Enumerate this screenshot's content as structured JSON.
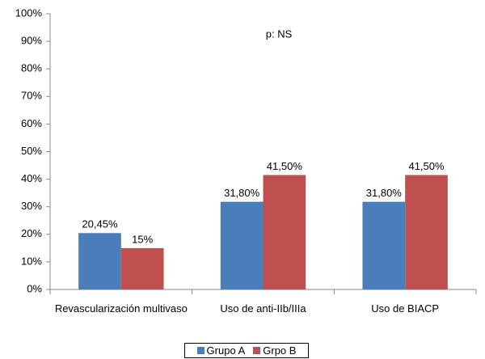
{
  "chart_data": {
    "type": "bar",
    "annotation": "p: NS",
    "categories": [
      "Revascularización multivaso",
      "Uso de anti-IIb/IIIa",
      "Uso de BIACP"
    ],
    "series": [
      {
        "name": "Grupo A",
        "color": "#4a7ebb",
        "values": [
          20.45,
          31.8,
          31.8
        ],
        "value_labels": [
          "20,45%",
          "31,80%",
          "31,80%"
        ]
      },
      {
        "name": "Grpo B",
        "color": "#c0504d",
        "values": [
          15,
          41.5,
          41.5
        ],
        "value_labels": [
          "15%",
          "41,50%",
          "41,50%"
        ]
      }
    ],
    "ylim": [
      0,
      100
    ],
    "yticks": [
      {
        "value": 0,
        "label": "0%"
      },
      {
        "value": 10,
        "label": "10%"
      },
      {
        "value": 20,
        "label": "20%"
      },
      {
        "value": 30,
        "label": "30%"
      },
      {
        "value": 40,
        "label": "40%"
      },
      {
        "value": 50,
        "label": "50%"
      },
      {
        "value": 60,
        "label": "60%"
      },
      {
        "value": 70,
        "label": "70%"
      },
      {
        "value": 80,
        "label": "80%"
      },
      {
        "value": 90,
        "label": "90%"
      },
      {
        "value": 100,
        "label": "100%"
      }
    ],
    "grid": false,
    "legend": "bottom"
  }
}
